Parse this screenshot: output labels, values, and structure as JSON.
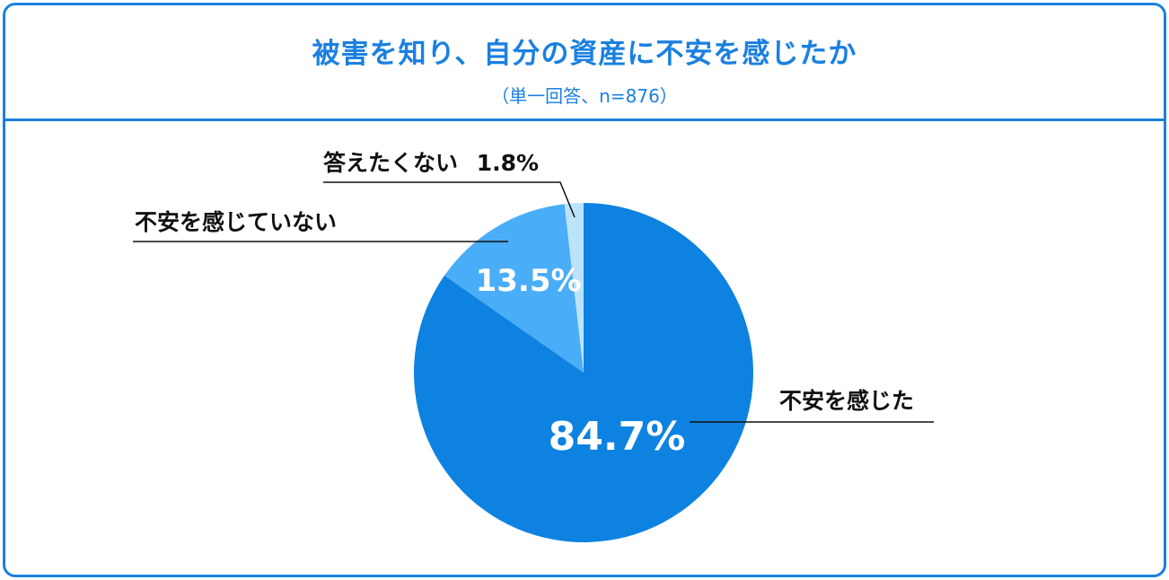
{
  "header": {
    "title": "被害を知り、自分の資産に不安を感じたか",
    "subtitle": "（単一回答、n=876）"
  },
  "colors": {
    "accent": "#1a80e0",
    "slice_main": "#0e82e1",
    "slice_second": "#4aadf7",
    "slice_third": "#bde3fb",
    "label_text": "#111111"
  },
  "chart_data": {
    "type": "pie",
    "title": "被害を知り、自分の資産に不安を感じたか",
    "subtitle": "（単一回答、n=876）",
    "slices": [
      {
        "label": "不安を感じた",
        "value": 84.7,
        "display": "84.7%"
      },
      {
        "label": "不安を感じていない",
        "value": 13.5,
        "display": "13.5%"
      },
      {
        "label": "答えたくない",
        "value": 1.8,
        "display": "1.8%"
      }
    ]
  }
}
